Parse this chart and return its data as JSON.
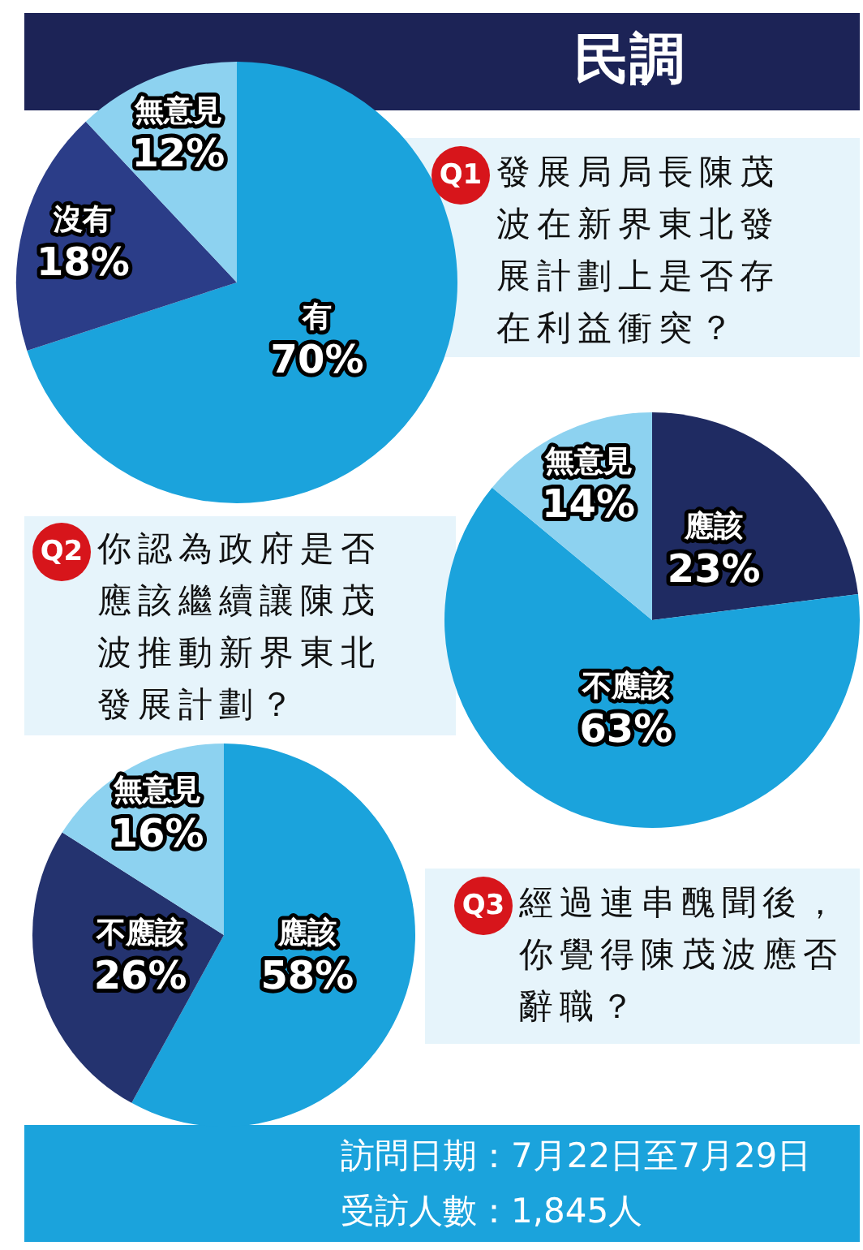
{
  "chart_data": [
    {
      "type": "pie",
      "title": "發展局局長陳茂波在新界東北發展計劃上是否存在利益衝突？",
      "annotations": [
        "Q1"
      ],
      "categories": [
        "有",
        "沒有",
        "無意見"
      ],
      "values": [
        70,
        18,
        12
      ],
      "colors": [
        "#1ba3dc",
        "#2b3d88",
        "#8dd2f0"
      ],
      "value_labels": [
        "70%",
        "18%",
        "12%"
      ],
      "legend": false
    },
    {
      "type": "pie",
      "title": "你認為政府是否應該繼續讓陳茂波推動新界東北發展計劃？",
      "annotations": [
        "Q2"
      ],
      "categories": [
        "應該",
        "不應該",
        "無意見"
      ],
      "values": [
        23,
        63,
        14
      ],
      "colors": [
        "#1f2b62",
        "#1ba3dc",
        "#8dd2f0"
      ],
      "value_labels": [
        "23%",
        "63%",
        "14%"
      ],
      "legend": false
    },
    {
      "type": "pie",
      "title": "經過連串醜聞後，你覺得陳茂波應否辭職？",
      "annotations": [
        "Q3"
      ],
      "categories": [
        "應該",
        "不應該",
        "無意見"
      ],
      "values": [
        58,
        26,
        16
      ],
      "colors": [
        "#1ba3dc",
        "#24336f",
        "#8dd2f0"
      ],
      "value_labels": [
        "58%",
        "26%",
        "16%"
      ],
      "legend": false
    },
    {
      "type": "other",
      "title": "民調",
      "annotations": [
        "訪問日期：7月22日至7月29日",
        "受訪人數：1,845人"
      ]
    }
  ]
}
